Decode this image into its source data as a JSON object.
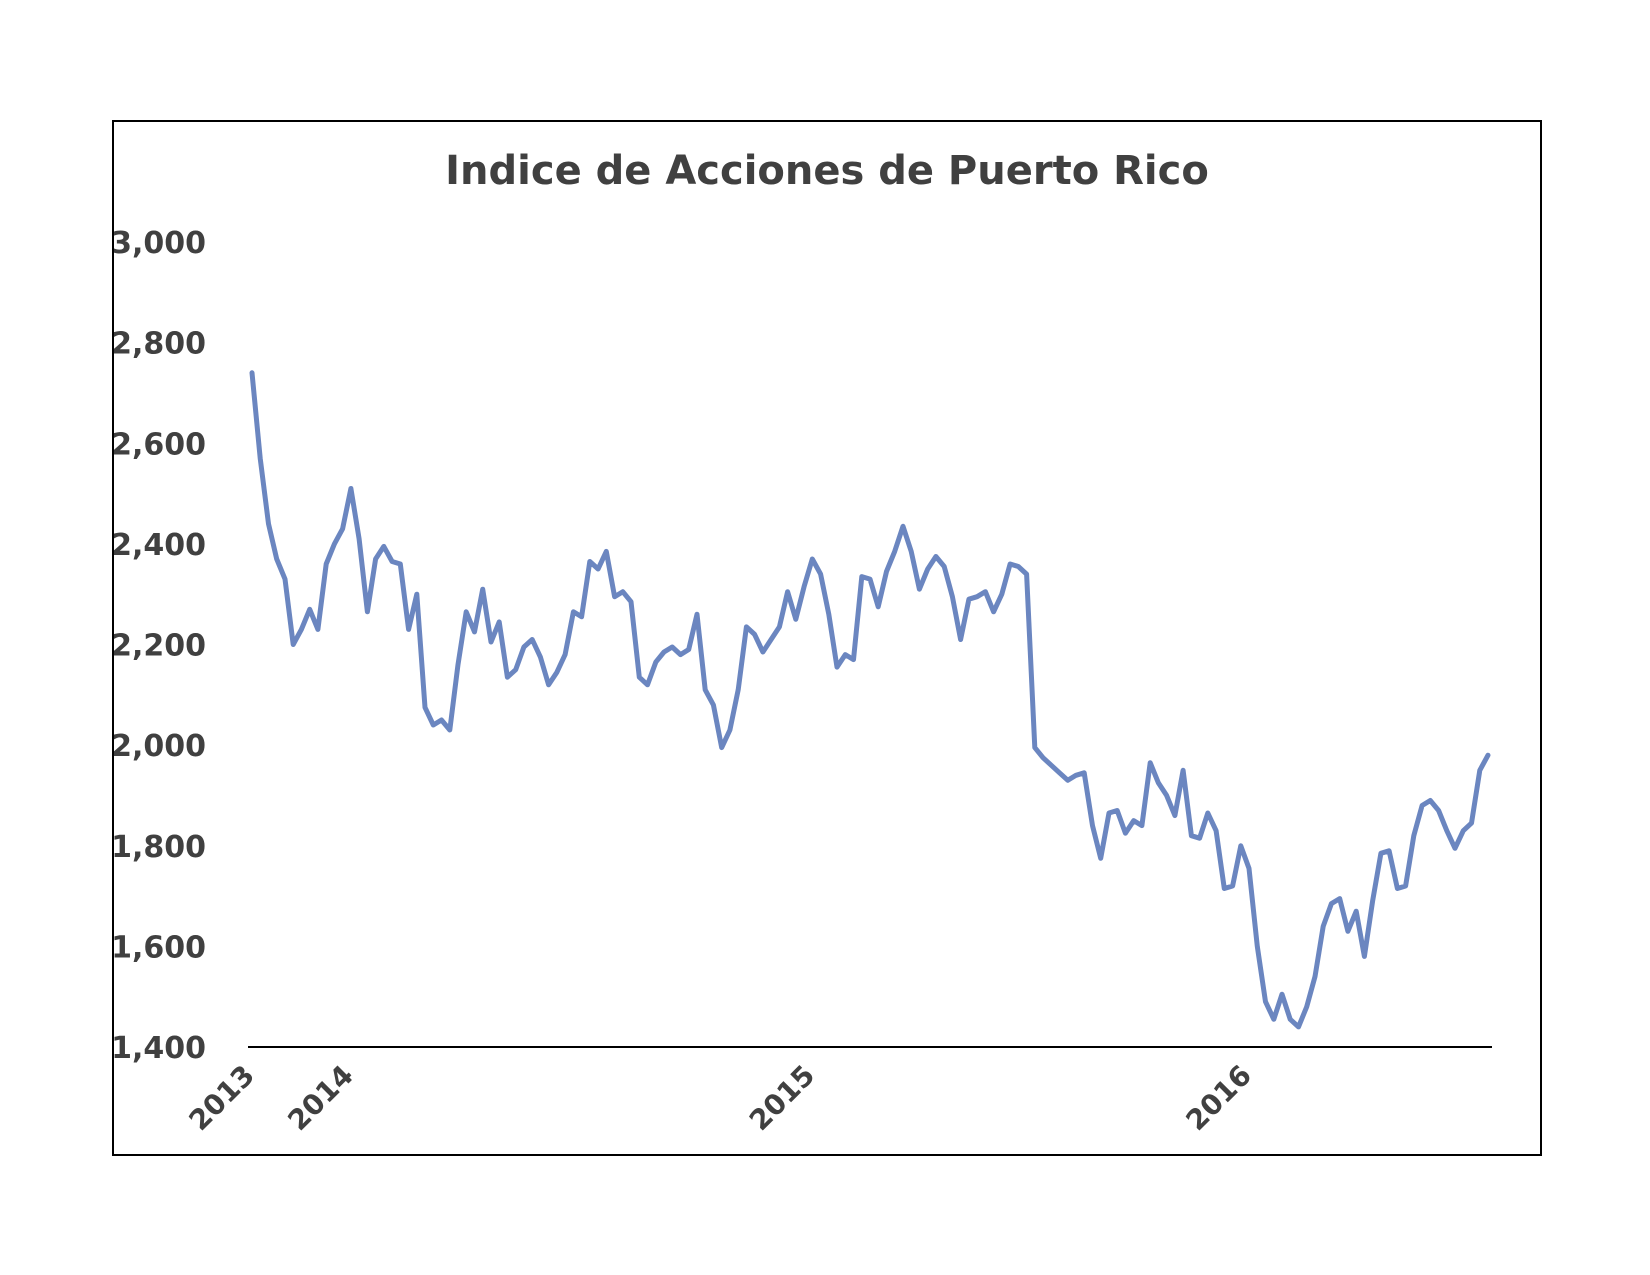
{
  "chart_data": {
    "type": "line",
    "title": "Indice de Acciones de Puerto Rico",
    "xlabel": "",
    "ylabel": "",
    "ylim": [
      1400,
      3000
    ],
    "yticks": [
      "1,400",
      "1,600",
      "1,800",
      "2,000",
      "2,200",
      "2,400",
      "2,600",
      "2,800",
      "3,000"
    ],
    "ytick_values": [
      1400,
      1600,
      1800,
      2000,
      2200,
      2400,
      2600,
      2800,
      3000
    ],
    "xticks": [
      {
        "label": "2013",
        "index": 0
      },
      {
        "label": "2014",
        "index": 12
      },
      {
        "label": "2015",
        "index": 68
      },
      {
        "label": "2016",
        "index": 121
      }
    ],
    "grid": false,
    "legend": "none",
    "line_color": "#6b86c0",
    "series": [
      {
        "values": [
          2740,
          2570,
          2440,
          2370,
          2330,
          2200,
          2230,
          2270,
          2230,
          2360,
          2400,
          2430,
          2510,
          2410,
          2265,
          2370,
          2395,
          2365,
          2360,
          2230,
          2300,
          2075,
          2040,
          2050,
          2030,
          2160,
          2265,
          2225,
          2310,
          2205,
          2245,
          2135,
          2150,
          2195,
          2210,
          2175,
          2120,
          2145,
          2180,
          2265,
          2255,
          2365,
          2350,
          2385,
          2295,
          2305,
          2285,
          2135,
          2120,
          2165,
          2185,
          2195,
          2180,
          2190,
          2260,
          2110,
          2080,
          1995,
          2030,
          2110,
          2235,
          2220,
          2185,
          2210,
          2235,
          2305,
          2250,
          2315,
          2370,
          2340,
          2260,
          2155,
          2180,
          2170,
          2335,
          2330,
          2275,
          2345,
          2385,
          2435,
          2385,
          2310,
          2350,
          2375,
          2355,
          2295,
          2210,
          2290,
          2295,
          2305,
          2265,
          2300,
          2360,
          2355,
          2340,
          1995,
          1975,
          1960,
          1945,
          1930,
          1940,
          1945,
          1840,
          1775,
          1865,
          1870,
          1825,
          1850,
          1840,
          1965,
          1925,
          1900,
          1860,
          1950,
          1820,
          1815,
          1865,
          1830,
          1715,
          1720,
          1800,
          1755,
          1600,
          1490,
          1455,
          1505,
          1455,
          1440,
          1480,
          1540,
          1640,
          1685,
          1695,
          1630,
          1670,
          1580,
          1690,
          1785,
          1790,
          1715,
          1720,
          1820,
          1880,
          1890,
          1870,
          1830,
          1795,
          1830,
          1845,
          1950,
          1980
        ]
      }
    ]
  }
}
